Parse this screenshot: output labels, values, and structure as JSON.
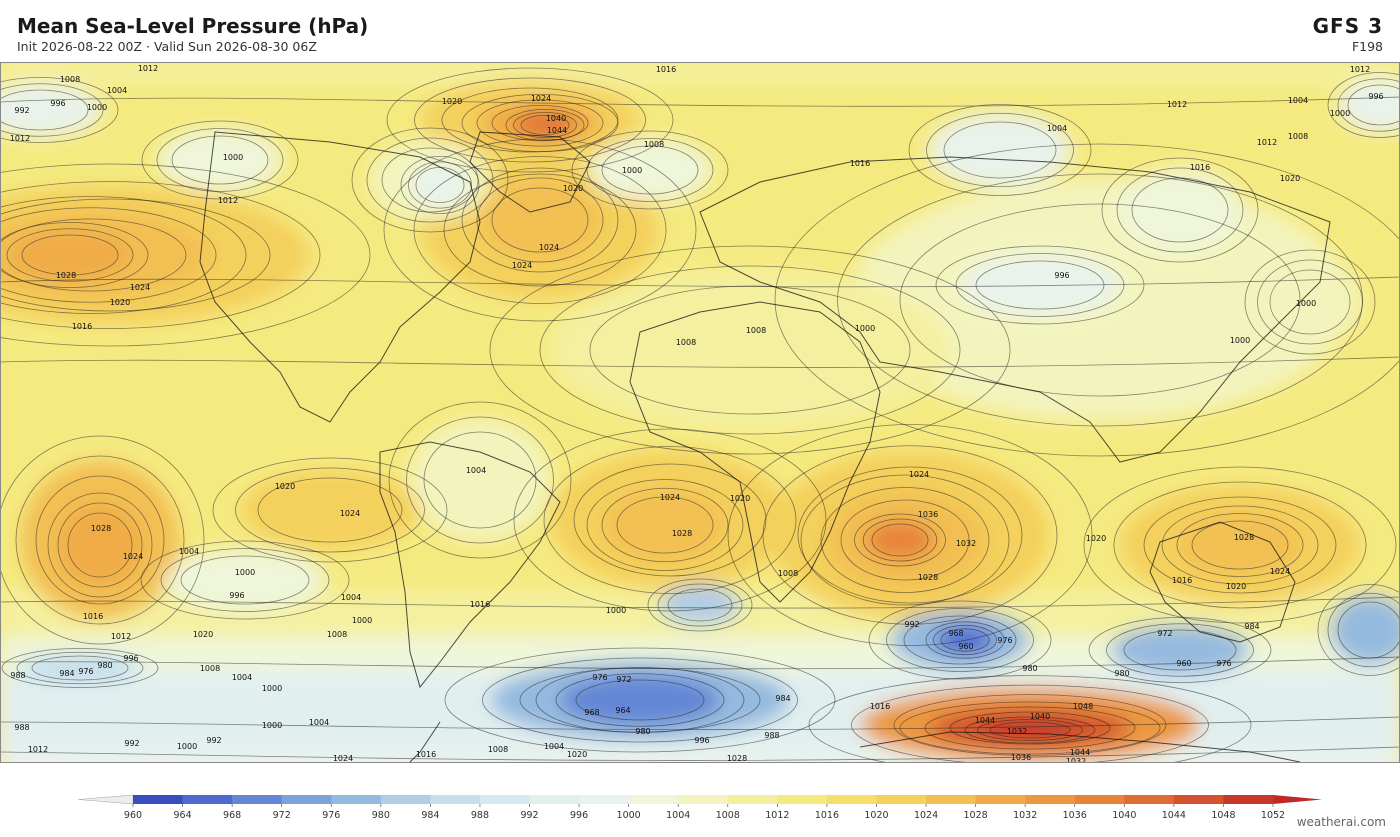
{
  "header": {
    "title": "Mean Sea-Level Pressure  (hPa)",
    "subtitle": "Init 2026-08-22 00Z   ·   Valid Sun 2026-08-30 06Z",
    "model": "GFS  3",
    "forecast_hour": "F198"
  },
  "colorbar": {
    "ticks": [
      960,
      964,
      968,
      972,
      976,
      980,
      984,
      988,
      992,
      996,
      1000,
      1004,
      1008,
      1012,
      1016,
      1020,
      1024,
      1028,
      1032,
      1036,
      1040,
      1044,
      1048,
      1052
    ],
    "colors": [
      "#3b4cc0",
      "#5069cf",
      "#6386d5",
      "#7ba2d9",
      "#95badf",
      "#b0cde6",
      "#c6dfec",
      "#d6e9ef",
      "#e1efef",
      "#e9f3ec",
      "#eff6da",
      "#f3f4bd",
      "#f4f09f",
      "#f5ea80",
      "#f5df68",
      "#f4d05c",
      "#f2bf52",
      "#f0ab47",
      "#ec9840",
      "#e8843a",
      "#df6c34",
      "#d4522f",
      "#c6372b"
    ],
    "under_color": "#ededed",
    "over_color": "#c0282a"
  },
  "contour_labels": [
    1012,
    1016,
    1012,
    1008,
    1004,
    992,
    996,
    1000,
    1020,
    1024,
    1040,
    1044,
    1008,
    1000,
    1012,
    1004,
    996,
    1000,
    1012,
    1008,
    1004,
    1012,
    1000,
    1012,
    1020,
    1024,
    1024,
    1016,
    1020,
    1016,
    1028,
    1024,
    1020,
    1016,
    1000,
    1000,
    996,
    1000,
    1008,
    1008,
    1004,
    1020,
    1024,
    1028,
    1024,
    1004,
    1000,
    996,
    1004,
    1000,
    1024,
    1020,
    1028,
    1024,
    1036,
    1032,
    1028,
    1020,
    1028,
    1024,
    1016,
    1020,
    1008,
    1000,
    1016,
    1008,
    1020,
    1016,
    1012,
    996,
    1008,
    1004,
    1000,
    980,
    976,
    984,
    988,
    992,
    968,
    960,
    976,
    972,
    960,
    976,
    984,
    980,
    980,
    976,
    972,
    968,
    964,
    984,
    1016,
    1044,
    1040,
    1048,
    1032,
    1036,
    1044,
    1032,
    1024,
    1016,
    1008,
    1004,
    1020,
    1028,
    996,
    988,
    980,
    1000,
    1004,
    992,
    1000,
    988,
    1012,
    992
  ],
  "watermark": "weatherai.com"
}
